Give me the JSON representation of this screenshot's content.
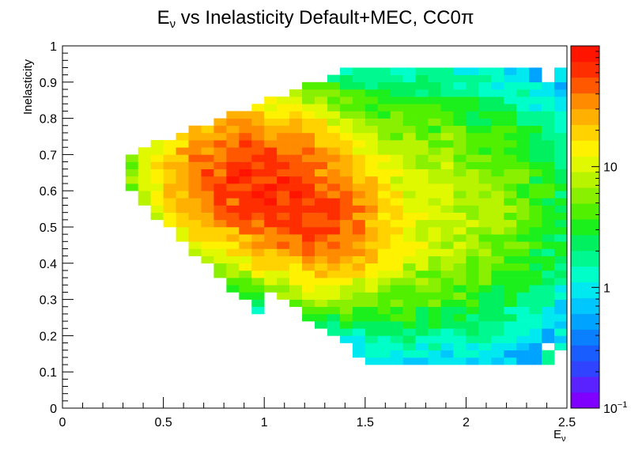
{
  "chart_data": {
    "type": "heatmap",
    "title": "Eν vs Inelasticity Default+MEC, CC0π",
    "title_parts": {
      "prefix": "E",
      "subscript": "ν",
      "rest": " vs Inelasticity Default+MEC, CC0π"
    },
    "xlabel": "Eν",
    "xlabel_parts": {
      "main": "E",
      "subscript": "ν"
    },
    "ylabel": "Inelasticity",
    "xlim": [
      0,
      2.5
    ],
    "ylim": [
      0,
      1
    ],
    "x_bins": 40,
    "y_bins": 50,
    "x_ticks": [
      "0",
      "0.5",
      "1",
      "1.5",
      "2",
      "2.5"
    ],
    "y_ticks": [
      "0",
      "0.1",
      "0.2",
      "0.3",
      "0.4",
      "0.5",
      "0.6",
      "0.7",
      "0.8",
      "0.9",
      "1"
    ],
    "z_scale": "log",
    "z_range": [
      0.1,
      100
    ],
    "z_ticks": [
      {
        "value": 0.1,
        "label_main": "10",
        "label_sup": "−1"
      },
      {
        "value": 1,
        "label_main": "1",
        "label_sup": ""
      },
      {
        "value": 10,
        "label_main": "10",
        "label_sup": ""
      }
    ],
    "palette": [
      "#7f00ff",
      "#5a22ff",
      "#3044ff",
      "#1a5dff",
      "#0a80ff",
      "#00a3ff",
      "#00c8ff",
      "#00e8f0",
      "#00ffc8",
      "#00f890",
      "#00f060",
      "#1cf01c",
      "#50f000",
      "#88f000",
      "#b8f400",
      "#e0f800",
      "#fff200",
      "#ffd200",
      "#ffb000",
      "#ff8c00",
      "#ff5800",
      "#ff2e00",
      "#ff1400"
    ],
    "grid": false,
    "peak": {
      "x": 0.9,
      "y": 0.62,
      "value": 60
    },
    "description_of_density": "Main red blob spans Eν 0.6–1.4 and inelasticity 0.45–0.8; distribution fades to yellow/green toward higher Eν and edges, with sparse cyan bins near the boundary"
  }
}
